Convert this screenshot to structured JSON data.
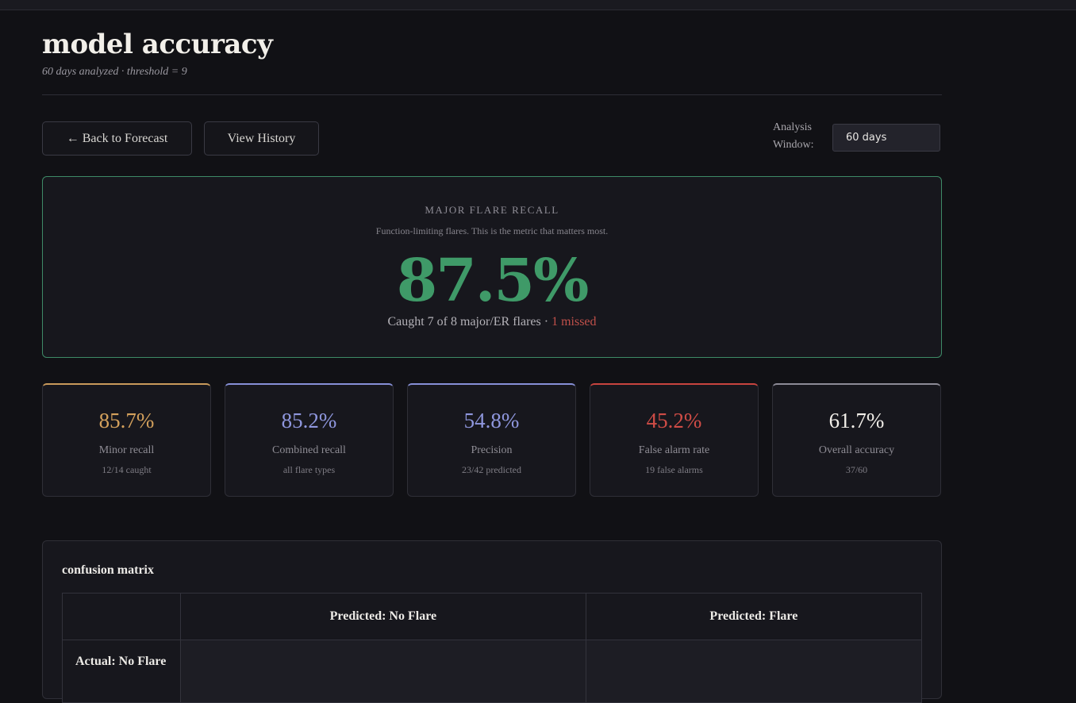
{
  "header": {
    "title": "model accuracy",
    "subtitle": "60 days analyzed · threshold = 9"
  },
  "buttons": [
    "← Back to Forecast",
    "View History"
  ],
  "analysis_window": {
    "label": "Analysis Window:",
    "value": "60 days"
  },
  "hero": {
    "label": "MAJOR FLARE RECALL",
    "description": "Function-limiting flares. This is the metric that matters most.",
    "value": "87.5%",
    "caption": "Caught 7 of 8 major/ER flares · ",
    "missed": "1 missed"
  },
  "cards": [
    {
      "value": "85.7%",
      "label": "Minor recall",
      "sub": "12/14 caught"
    },
    {
      "value": "85.2%",
      "label": "Combined recall",
      "sub": "all flare types"
    },
    {
      "value": "54.8%",
      "label": "Precision",
      "sub": "23/42 predicted"
    },
    {
      "value": "45.2%",
      "label": "False alarm rate",
      "sub": "19 false alarms"
    },
    {
      "value": "61.7%",
      "label": "Overall accuracy",
      "sub": "37/60"
    }
  ],
  "confusion_matrix": {
    "title": "confusion matrix",
    "columns": [
      "Predicted: No Flare",
      "Predicted: Flare"
    ],
    "rows": [
      "Actual: No Flare"
    ]
  }
}
